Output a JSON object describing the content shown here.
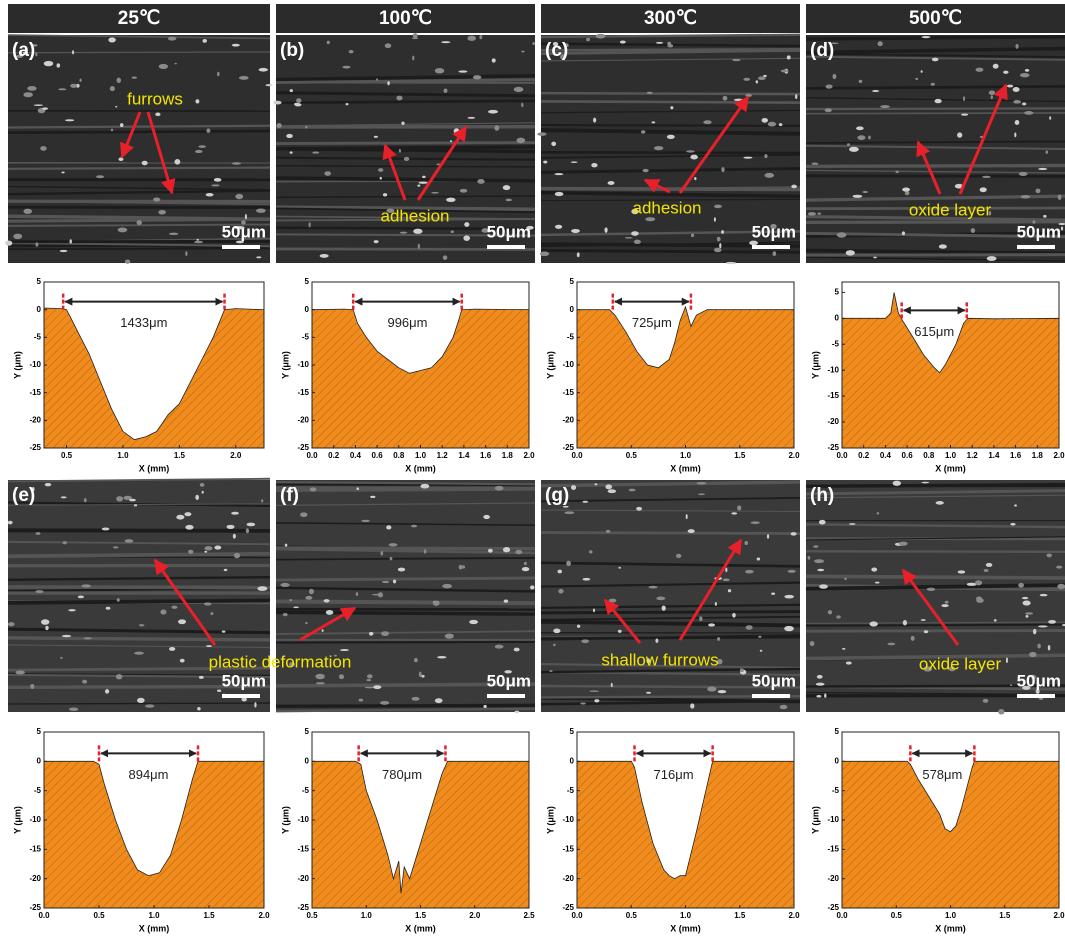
{
  "column_headers": [
    "25℃",
    "100℃",
    "300℃",
    "500℃"
  ],
  "micrographs": [
    {
      "label": "(a)",
      "scale_bar": "50μm",
      "annotation": "furrows"
    },
    {
      "label": "(b)",
      "scale_bar": "50μm",
      "annotation": "adhesion"
    },
    {
      "label": "(c)",
      "scale_bar": "50μm",
      "annotation": "adhesion"
    },
    {
      "label": "(d)",
      "scale_bar": "50μm",
      "annotation": "oxide layer"
    },
    {
      "label": "(e)",
      "scale_bar": "50μm",
      "annotation": "plastic deformation"
    },
    {
      "label": "(f)",
      "scale_bar": "50μm"
    },
    {
      "label": "(g)",
      "scale_bar": "50μm",
      "annotation": "shallow  furrows"
    },
    {
      "label": "(h)",
      "scale_bar": "50μm",
      "annotation": "oxide layer"
    }
  ],
  "chart_data": [
    {
      "type": "area",
      "color": "#f08c1e",
      "xlabel": "X (mm)",
      "ylabel": "Y (μm)",
      "xlim": [
        0.3,
        2.25
      ],
      "ylim": [
        -25,
        5
      ],
      "xticks": [
        0.5,
        {
          "value": 1,
          "label": "1.0"
        },
        1.5,
        {
          "value": 2,
          "label": "2.0"
        }
      ],
      "yticks": [
        5,
        0,
        -5,
        -10,
        -15,
        -20,
        -25
      ],
      "x": [
        0.3,
        0.45,
        0.5,
        0.55,
        0.6,
        0.7,
        0.8,
        0.9,
        1.0,
        1.1,
        1.2,
        1.3,
        1.4,
        1.5,
        1.6,
        1.7,
        1.8,
        1.9,
        2.0,
        2.25
      ],
      "values": [
        0.3,
        0.2,
        0,
        -2,
        -4,
        -8,
        -13,
        -18,
        -22,
        -23.5,
        -23,
        -22,
        -19,
        -17,
        -13,
        -9,
        -5,
        0,
        0.2,
        0
      ],
      "annotation": {
        "text": "1433μm",
        "x": [
          0.47,
          1.9
        ]
      }
    },
    {
      "type": "area",
      "color": "#f08c1e",
      "xlabel": "X (mm)",
      "ylabel": "Y (μm)",
      "xlim": [
        0,
        2
      ],
      "ylim": [
        -25,
        5
      ],
      "xticks": [
        {
          "value": 0,
          "label": "0.0"
        },
        0.2,
        0.4,
        0.6,
        0.8,
        {
          "value": 1,
          "label": "1.0"
        },
        1.2,
        1.4,
        1.6,
        1.8,
        {
          "value": 2,
          "label": "2.0"
        }
      ],
      "yticks": [
        5,
        0,
        -5,
        -10,
        -15,
        -20,
        -25
      ],
      "x": [
        0,
        0.3,
        0.38,
        0.42,
        0.5,
        0.6,
        0.7,
        0.8,
        0.9,
        1.0,
        1.1,
        1.2,
        1.3,
        1.35,
        1.38,
        1.5,
        2.0
      ],
      "values": [
        0,
        0.1,
        0,
        -2.5,
        -5,
        -7.5,
        -9,
        -10.5,
        -11.5,
        -11,
        -10.5,
        -8.5,
        -5,
        -2,
        0,
        0.1,
        0
      ],
      "annotation": {
        "text": "996μm",
        "x": [
          0.38,
          1.38
        ]
      }
    },
    {
      "type": "area",
      "color": "#f08c1e",
      "xlabel": "X (mm)",
      "ylabel": "Y (μm)",
      "xlim": [
        0,
        2
      ],
      "ylim": [
        -25,
        5
      ],
      "xticks": [
        {
          "value": 0,
          "label": "0.0"
        },
        0.5,
        {
          "value": 1,
          "label": "1.0"
        },
        1.5,
        {
          "value": 2,
          "label": "2.0"
        }
      ],
      "yticks": [
        5,
        0,
        -5,
        -10,
        -15,
        -20,
        -25
      ],
      "x": [
        0,
        0.3,
        0.35,
        0.45,
        0.55,
        0.65,
        0.75,
        0.85,
        0.9,
        0.95,
        1.0,
        1.05,
        1.1,
        1.2,
        2.0
      ],
      "values": [
        0,
        0,
        -1,
        -4,
        -7.5,
        -10,
        -10.5,
        -9,
        -6,
        -2,
        0.5,
        -3,
        -1,
        0,
        0
      ],
      "annotation": {
        "text": "725μm",
        "x": [
          0.33,
          1.05
        ]
      }
    },
    {
      "type": "area",
      "color": "#f08c1e",
      "xlabel": "X (mm)",
      "ylabel": "Y (μm)",
      "xlim": [
        0,
        2
      ],
      "ylim": [
        -25,
        7
      ],
      "xticks": [
        {
          "value": 0,
          "label": "0.0"
        },
        0.2,
        0.4,
        0.6,
        0.8,
        {
          "value": 1,
          "label": "1.0"
        },
        1.2,
        1.4,
        1.6,
        1.8,
        {
          "value": 2,
          "label": "2.0"
        }
      ],
      "yticks": [
        5,
        0,
        -5,
        -10,
        -15,
        -20,
        -25
      ],
      "x": [
        0,
        0.4,
        0.45,
        0.48,
        0.52,
        0.56,
        0.65,
        0.75,
        0.85,
        0.9,
        0.95,
        1.05,
        1.12,
        1.16,
        1.4,
        2.0
      ],
      "values": [
        0,
        0,
        1,
        5,
        1,
        -0.5,
        -3.5,
        -7,
        -9.5,
        -10.5,
        -9,
        -5,
        -1,
        0,
        -0.1,
        0
      ],
      "annotation": {
        "text": "615μm",
        "x": [
          0.55,
          1.15
        ]
      }
    },
    {
      "type": "area",
      "color": "#f08c1e",
      "xlabel": "X (mm)",
      "ylabel": "Y (μm)",
      "xlim": [
        0,
        2
      ],
      "ylim": [
        -25,
        5
      ],
      "xticks": [
        {
          "value": 0,
          "label": "0.0"
        },
        0.5,
        {
          "value": 1,
          "label": "1.0"
        },
        1.5,
        {
          "value": 2,
          "label": "2.0"
        }
      ],
      "yticks": [
        5,
        0,
        -5,
        -10,
        -15,
        -20,
        -25
      ],
      "x": [
        0,
        0.45,
        0.5,
        0.55,
        0.65,
        0.75,
        0.85,
        0.95,
        1.05,
        1.15,
        1.25,
        1.35,
        1.4,
        1.45,
        2.0
      ],
      "values": [
        0,
        0,
        -0.5,
        -4,
        -10,
        -15,
        -18.5,
        -19.5,
        -19,
        -16,
        -10,
        -3,
        0,
        0,
        0
      ],
      "annotation": {
        "text": "894μm",
        "x": [
          0.5,
          1.4
        ]
      }
    },
    {
      "type": "area",
      "color": "#f08c1e",
      "xlabel": "X (mm)",
      "ylabel": "Y (μm)",
      "xlim": [
        0.5,
        2.5
      ],
      "ylim": [
        -25,
        5
      ],
      "xticks": [
        0.5,
        {
          "value": 1,
          "label": "1.0"
        },
        1.5,
        {
          "value": 2,
          "label": "2.0"
        },
        2.5
      ],
      "yticks": [
        5,
        0,
        -5,
        -10,
        -15,
        -20,
        -25
      ],
      "x": [
        0.5,
        0.9,
        0.95,
        1.0,
        1.1,
        1.2,
        1.25,
        1.3,
        1.32,
        1.35,
        1.4,
        1.5,
        1.6,
        1.7,
        1.75,
        2.5
      ],
      "values": [
        0,
        0,
        -0.5,
        -5,
        -10,
        -16,
        -20,
        -17,
        -22.5,
        -18,
        -20,
        -14,
        -8,
        -2,
        0,
        0
      ],
      "annotation": {
        "text": "780μm",
        "x": [
          0.93,
          1.73
        ]
      }
    },
    {
      "type": "area",
      "color": "#f08c1e",
      "xlabel": "X (mm)",
      "ylabel": "Y (μm)",
      "xlim": [
        0,
        2
      ],
      "ylim": [
        -25,
        5
      ],
      "xticks": [
        {
          "value": 0,
          "label": "0.0"
        },
        0.5,
        {
          "value": 1,
          "label": "1.0"
        },
        1.5,
        {
          "value": 2,
          "label": "2.0"
        }
      ],
      "yticks": [
        5,
        0,
        -5,
        -10,
        -15,
        -20,
        -25
      ],
      "x": [
        0,
        0.5,
        0.53,
        0.6,
        0.7,
        0.8,
        0.85,
        0.9,
        0.95,
        1.0,
        1.1,
        1.2,
        1.25,
        1.3,
        2.0
      ],
      "values": [
        0,
        0,
        -1,
        -7,
        -14,
        -18.5,
        -19.5,
        -20,
        -19.5,
        -19.5,
        -12,
        -4,
        0,
        0,
        0
      ],
      "annotation": {
        "text": "716μm",
        "x": [
          0.53,
          1.25
        ]
      }
    },
    {
      "type": "area",
      "color": "#f08c1e",
      "xlabel": "X (mm)",
      "ylabel": "Y (μm)",
      "xlim": [
        0,
        2
      ],
      "ylim": [
        -25,
        5
      ],
      "xticks": [
        {
          "value": 0,
          "label": "0.0"
        },
        0.5,
        {
          "value": 1,
          "label": "1.0"
        },
        1.5,
        {
          "value": 2,
          "label": "2.0"
        }
      ],
      "yticks": [
        5,
        0,
        -5,
        -10,
        -15,
        -20,
        -25
      ],
      "x": [
        0,
        0.6,
        0.63,
        0.7,
        0.8,
        0.9,
        0.95,
        1.0,
        1.05,
        1.1,
        1.2,
        1.22,
        1.3,
        2.0
      ],
      "values": [
        0,
        0,
        -0.5,
        -3,
        -6,
        -9,
        -11.5,
        -12,
        -11,
        -8,
        -1,
        0,
        0,
        0
      ],
      "annotation": {
        "text": "578μm",
        "x": [
          0.63,
          1.22
        ]
      }
    }
  ]
}
